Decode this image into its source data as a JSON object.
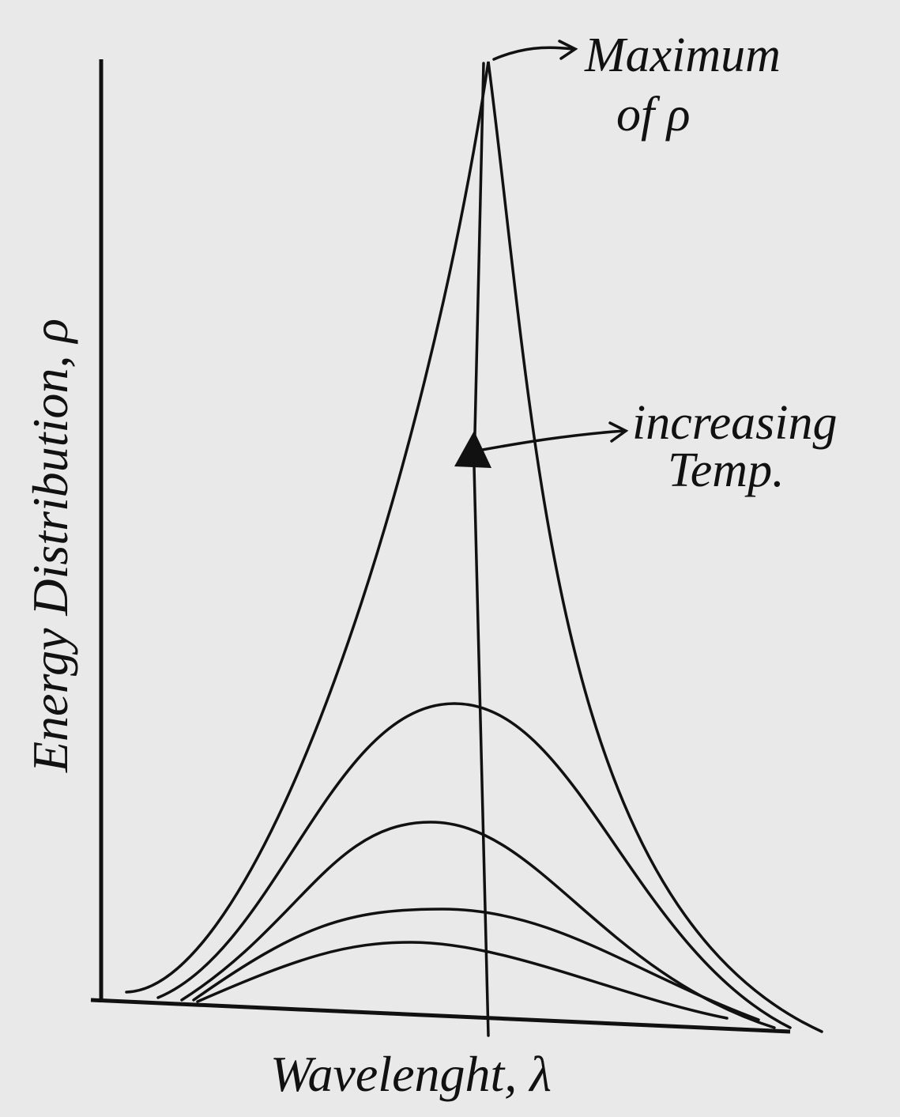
{
  "y_axis_label": "Energy Distribution, ρ",
  "x_axis_label": "Wavelenght, λ",
  "annotations": [
    {
      "lines": [
        "Maximum",
        "of ρ"
      ]
    },
    {
      "lines": [
        "increasing",
        "Temp."
      ]
    }
  ]
}
